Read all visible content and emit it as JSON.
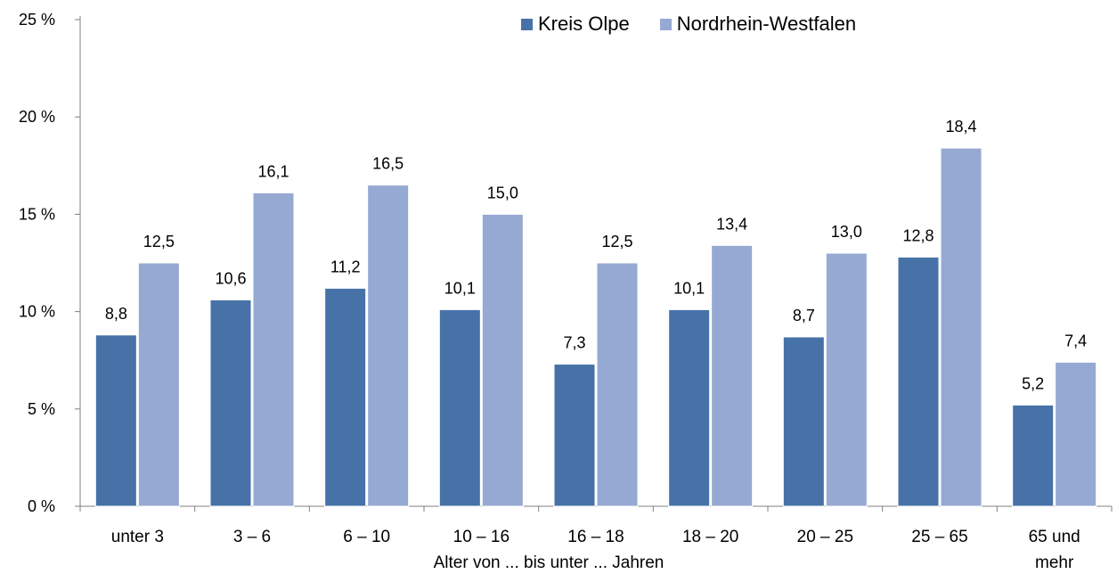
{
  "chart_data": {
    "type": "bar",
    "xlabel": "Alter von ... bis unter ... Jahren",
    "categories": [
      "unter 3",
      "3 –  6",
      "6 – 10",
      "10 – 16",
      "16 – 18",
      "18 – 20",
      "20 – 25",
      "25 – 65",
      "65 und mehr"
    ],
    "series": [
      {
        "name": "Kreis Olpe",
        "color": "#4672A8",
        "values": [
          8.8,
          10.6,
          11.2,
          10.1,
          7.3,
          10.1,
          8.7,
          12.8,
          5.2
        ],
        "labels": [
          "8,8",
          "10,6",
          "11,2",
          "10,1",
          "7,3",
          "10,1",
          "8,7",
          "12,8",
          "5,2"
        ]
      },
      {
        "name": "Nordrhein-Westfalen",
        "color": "#95A9D2",
        "values": [
          12.5,
          16.1,
          16.5,
          15.0,
          12.5,
          13.4,
          13.0,
          18.4,
          7.4
        ],
        "labels": [
          "12,5",
          "16,1",
          "16,5",
          "15,0",
          "12,5",
          "13,4",
          "13,0",
          "18,4",
          "7,4"
        ]
      }
    ],
    "ylim": [
      0,
      25
    ],
    "yticks": [
      0,
      5,
      10,
      15,
      20,
      25
    ],
    "ytick_labels": [
      "0 %",
      "5 %",
      "10 %",
      "15 %",
      "20 %",
      "25 %"
    ],
    "legend_position": "top-right",
    "grid": false
  }
}
